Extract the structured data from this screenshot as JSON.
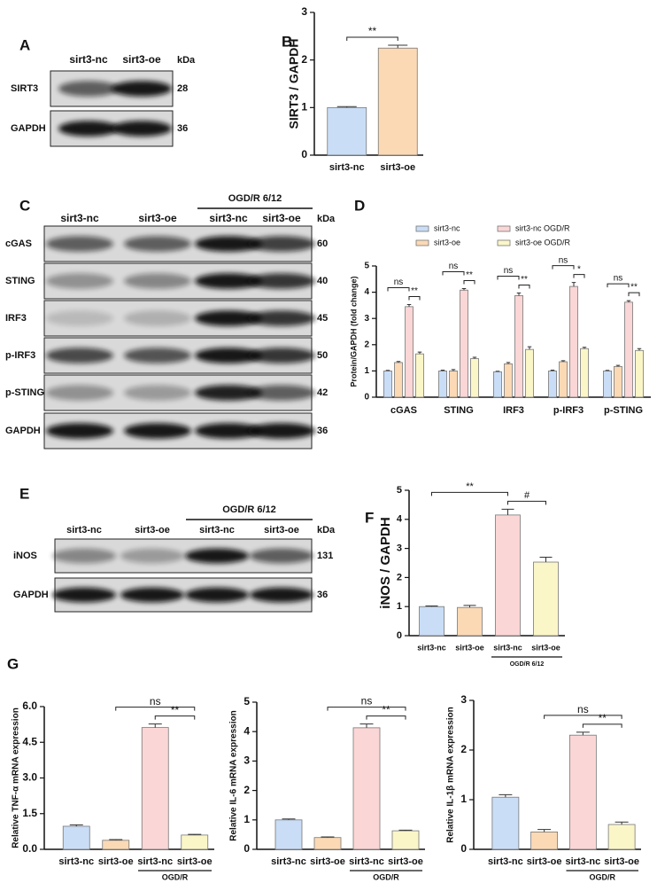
{
  "panel_labels": [
    "A",
    "B",
    "C",
    "D",
    "E",
    "F",
    "G"
  ],
  "blot_A": {
    "lanes": [
      "sirt3-nc",
      "sirt3-oe"
    ],
    "kda_label": "kDa",
    "rows": [
      {
        "name": "SIRT3",
        "kda": 28
      },
      {
        "name": "GAPDH",
        "kda": 36
      }
    ]
  },
  "blot_C": {
    "group": {
      "label": "OGD/R  6/12",
      "from": 2,
      "to": 3
    },
    "lanes": [
      "sirt3-nc",
      "sirt3-oe",
      "sirt3-nc",
      "sirt3-oe"
    ],
    "kda_label": "kDa",
    "rows": [
      {
        "name": "cGAS",
        "kda": 60
      },
      {
        "name": "STING",
        "kda": 40
      },
      {
        "name": "IRF3",
        "kda": 45
      },
      {
        "name": "p-IRF3",
        "kda": 50
      },
      {
        "name": "p-STING",
        "kda": 42
      },
      {
        "name": "GAPDH",
        "kda": 36
      }
    ]
  },
  "blot_E": {
    "group": {
      "label": "OGD/R  6/12",
      "from": 2,
      "to": 3
    },
    "lanes": [
      "sirt3-nc",
      "sirt3-oe",
      "sirt3-nc",
      "sirt3-oe"
    ],
    "kda_label": "kDa",
    "rows": [
      {
        "name": "iNOS",
        "kda": 131
      },
      {
        "name": "GAPDH",
        "kda": 36
      }
    ]
  },
  "chart_data": [
    {
      "type": "bar",
      "ylabel": "SIRT3 / GAPDH",
      "categories": [
        "sirt3-nc",
        "sirt3-oe"
      ],
      "values": [
        1.0,
        2.25
      ],
      "errors": [
        0.02,
        0.06
      ],
      "colors": [
        "#c9ddf6",
        "#fbd9b5"
      ],
      "ylim": [
        0,
        3
      ],
      "yticks": [
        0,
        1,
        2,
        3
      ],
      "significance": [
        {
          "from": 0,
          "to": 1,
          "label": "**"
        }
      ]
    },
    {
      "type": "bar",
      "ylabel": "Protein/GAPDH (fold change)",
      "categories": [
        "cGAS",
        "STING",
        "IRF3",
        "p-IRF3",
        "p-STING"
      ],
      "series": [
        {
          "name": "sirt3-nc",
          "color": "#c9ddf6",
          "values": [
            1.0,
            1.0,
            0.97,
            1.0,
            1.0
          ],
          "errors": [
            0.02,
            0.03,
            0.02,
            0.03,
            0.02
          ]
        },
        {
          "name": "sirt3-oe",
          "color": "#fbd9b5",
          "values": [
            1.32,
            1.0,
            1.27,
            1.35,
            1.17
          ],
          "errors": [
            0.04,
            0.05,
            0.05,
            0.04,
            0.04
          ]
        },
        {
          "name": "sirt3-nc OGD/R",
          "color": "#fbd6d6",
          "values": [
            3.45,
            4.08,
            3.87,
            4.22,
            3.62
          ],
          "errors": [
            0.08,
            0.06,
            0.1,
            0.15,
            0.06
          ]
        },
        {
          "name": "sirt3-oe OGD/R",
          "color": "#fbf6c8",
          "values": [
            1.65,
            1.47,
            1.82,
            1.85,
            1.78
          ],
          "errors": [
            0.07,
            0.05,
            0.1,
            0.05,
            0.07
          ]
        }
      ],
      "legend": "top",
      "ylim": [
        0,
        5
      ],
      "yticks": [
        0,
        1,
        2,
        3,
        4,
        5
      ],
      "significance": [
        [
          {
            "series": [
              2,
              3
            ],
            "label": "**"
          },
          {
            "series": [
              0,
              2
            ],
            "label": "ns"
          }
        ],
        [
          {
            "series": [
              2,
              3
            ],
            "label": "**"
          },
          {
            "series": [
              0,
              2
            ],
            "label": "ns"
          }
        ],
        [
          {
            "series": [
              2,
              3
            ],
            "label": "**"
          },
          {
            "series": [
              0,
              2
            ],
            "label": "ns"
          }
        ],
        [
          {
            "series": [
              2,
              3
            ],
            "label": "*"
          },
          {
            "series": [
              0,
              2
            ],
            "label": "ns"
          }
        ],
        [
          {
            "series": [
              2,
              3
            ],
            "label": "**"
          },
          {
            "series": [
              0,
              2
            ],
            "label": "ns"
          }
        ]
      ]
    },
    {
      "type": "bar",
      "ylabel": "iNOS / GAPDH",
      "categories": [
        "sirt3-nc",
        "sirt3-oe",
        "sirt3-nc",
        "sirt3-oe"
      ],
      "values": [
        1.0,
        0.97,
        4.15,
        2.53
      ],
      "errors": [
        0.02,
        0.07,
        0.2,
        0.17
      ],
      "colors": [
        "#c9ddf6",
        "#fbd9b5",
        "#fbd6d6",
        "#fbf6c8"
      ],
      "ylim": [
        0,
        5
      ],
      "yticks": [
        0,
        1,
        2,
        3,
        4,
        5
      ],
      "group": {
        "label": "OGD/R 6/12",
        "from": 2,
        "to": 3
      },
      "significance": [
        {
          "from": 2,
          "to": 3,
          "label": "#"
        },
        {
          "from": 0,
          "to": 2,
          "label": "**"
        }
      ]
    },
    {
      "type": "bar",
      "ylabel": "Relative TNF-α mRNA expression",
      "categories": [
        "sirt3-nc",
        "sirt3-oe",
        "sirt3-nc",
        "sirt3-oe"
      ],
      "values": [
        0.97,
        0.38,
        5.12,
        0.6
      ],
      "errors": [
        0.06,
        0.03,
        0.15,
        0.03
      ],
      "colors": [
        "#c9ddf6",
        "#fbd9b5",
        "#fbd6d6",
        "#fbf6c8"
      ],
      "ylim": [
        0,
        6
      ],
      "yticks": [
        {
          "value": 0,
          "label": "0.0"
        },
        {
          "value": 1.5,
          "label": "1.5"
        },
        {
          "value": 3,
          "label": "3.0"
        },
        {
          "value": 4.5,
          "label": "4.5"
        },
        {
          "value": 6,
          "label": "6.0"
        }
      ],
      "group": {
        "label": "OGD/R",
        "from": 2,
        "to": 3
      },
      "significance": [
        {
          "from": 2,
          "to": 3,
          "label": "**"
        },
        {
          "from": 1,
          "to": 3,
          "label": "ns"
        }
      ]
    },
    {
      "type": "bar",
      "ylabel": "Relative IL-6 mRNA expression",
      "categories": [
        "sirt3-nc",
        "sirt3-oe",
        "sirt3-nc",
        "sirt3-oe"
      ],
      "values": [
        1.0,
        0.4,
        4.13,
        0.63
      ],
      "errors": [
        0.03,
        0.02,
        0.13,
        0.02
      ],
      "colors": [
        "#c9ddf6",
        "#fbd9b5",
        "#fbd6d6",
        "#fbf6c8"
      ],
      "ylim": [
        0,
        5
      ],
      "yticks": [
        0,
        1,
        2,
        3,
        4,
        5
      ],
      "group": {
        "label": "OGD/R",
        "from": 2,
        "to": 3
      },
      "significance": [
        {
          "from": 2,
          "to": 3,
          "label": "**"
        },
        {
          "from": 1,
          "to": 3,
          "label": "ns"
        }
      ]
    },
    {
      "type": "bar",
      "ylabel": "Relative IL-1β mRNA expression",
      "categories": [
        "sirt3-nc",
        "sirt3-oe",
        "sirt3-nc",
        "sirt3-oe"
      ],
      "values": [
        1.05,
        0.35,
        2.3,
        0.5
      ],
      "errors": [
        0.05,
        0.05,
        0.06,
        0.05
      ],
      "colors": [
        "#c9ddf6",
        "#fbd9b5",
        "#fbd6d6",
        "#fbf6c8"
      ],
      "ylim": [
        0,
        3
      ],
      "yticks": [
        0,
        1,
        2,
        3
      ],
      "group": {
        "label": "OGD/R",
        "from": 2,
        "to": 3
      },
      "significance": [
        {
          "from": 2,
          "to": 3,
          "label": "**"
        },
        {
          "from": 1,
          "to": 3,
          "label": "ns"
        }
      ]
    }
  ]
}
